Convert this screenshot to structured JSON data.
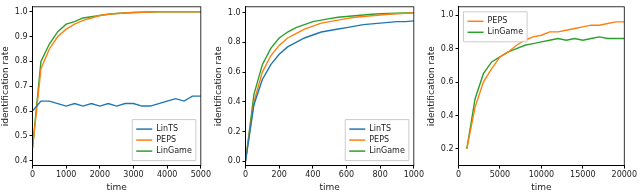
{
  "chart_data": [
    {
      "type": "line",
      "x_label": "time",
      "y_label": "identification rate",
      "xlim": [
        0,
        5000
      ],
      "xticks": [
        0,
        1000,
        2000,
        3000,
        4000,
        5000
      ],
      "ylim": [
        0.38,
        1.02
      ],
      "yticks": [
        0.4,
        0.5,
        0.6,
        0.7,
        0.8,
        0.9,
        {
          "value": 1,
          "label": "1.0"
        }
      ],
      "grid": false,
      "legend": "lower right",
      "x": [
        0,
        250,
        500,
        750,
        1000,
        1250,
        1500,
        1750,
        2000,
        2250,
        2500,
        2750,
        3000,
        3250,
        3500,
        3750,
        4000,
        4250,
        4500,
        4750,
        5000
      ],
      "series": [
        {
          "name": "LinTS",
          "color": "#1f77b4",
          "values": [
            0.6,
            0.64,
            0.64,
            0.63,
            0.62,
            0.63,
            0.62,
            0.63,
            0.62,
            0.63,
            0.62,
            0.63,
            0.63,
            0.62,
            0.62,
            0.63,
            0.64,
            0.65,
            0.64,
            0.66,
            0.66
          ]
        },
        {
          "name": "PEPS",
          "color": "#ff7f0e",
          "values": [
            0.45,
            0.77,
            0.85,
            0.9,
            0.93,
            0.95,
            0.965,
            0.975,
            0.985,
            0.99,
            0.993,
            0.995,
            0.997,
            0.998,
            0.999,
            1.0,
            1.0,
            1.0,
            1.0,
            1.0,
            1.0
          ]
        },
        {
          "name": "LinGame",
          "color": "#2ca02c",
          "values": [
            0.45,
            0.8,
            0.87,
            0.92,
            0.95,
            0.96,
            0.975,
            0.98,
            0.985,
            0.99,
            0.993,
            0.995,
            0.997,
            0.998,
            0.999,
            1.0,
            1.0,
            1.0,
            1.0,
            1.0,
            1.0
          ]
        }
      ]
    },
    {
      "type": "line",
      "x_label": "time",
      "y_label": "identification rate",
      "xlim": [
        0,
        1000
      ],
      "xticks": [
        0,
        200,
        400,
        600,
        800,
        1000
      ],
      "ylim": [
        -0.03,
        1.04
      ],
      "yticks": [
        {
          "value": 0,
          "label": "0.0"
        },
        0.2,
        0.4,
        0.6,
        0.8,
        {
          "value": 1,
          "label": "1.0"
        }
      ],
      "grid": false,
      "legend": "lower right",
      "x": [
        0,
        50,
        100,
        150,
        200,
        250,
        300,
        350,
        400,
        450,
        500,
        550,
        600,
        650,
        700,
        750,
        800,
        850,
        900,
        950,
        1000
      ],
      "series": [
        {
          "name": "LinTS",
          "color": "#1f77b4",
          "values": [
            0,
            0.38,
            0.55,
            0.65,
            0.72,
            0.77,
            0.8,
            0.83,
            0.85,
            0.87,
            0.88,
            0.89,
            0.9,
            0.91,
            0.92,
            0.925,
            0.93,
            0.935,
            0.94,
            0.94,
            0.945
          ]
        },
        {
          "name": "PEPS",
          "color": "#ff7f0e",
          "values": [
            0,
            0.4,
            0.6,
            0.71,
            0.78,
            0.83,
            0.86,
            0.89,
            0.91,
            0.93,
            0.94,
            0.95,
            0.96,
            0.97,
            0.975,
            0.98,
            0.985,
            0.99,
            0.993,
            0.996,
            1.0
          ]
        },
        {
          "name": "LinGame",
          "color": "#2ca02c",
          "values": [
            0,
            0.45,
            0.65,
            0.76,
            0.83,
            0.87,
            0.9,
            0.92,
            0.94,
            0.95,
            0.96,
            0.97,
            0.975,
            0.98,
            0.985,
            0.99,
            0.993,
            0.995,
            0.997,
            0.998,
            1.0
          ]
        }
      ]
    },
    {
      "type": "line",
      "x_label": "time",
      "y_label": "identification rate",
      "xlim": [
        0,
        20000
      ],
      "xticks": [
        0,
        5000,
        10000,
        15000,
        20000
      ],
      "ylim": [
        0.1,
        1.05
      ],
      "yticks": [
        0.2,
        0.4,
        0.6,
        0.8,
        {
          "value": 1,
          "label": "1.0"
        }
      ],
      "grid": false,
      "legend": "upper left",
      "x": [
        1000,
        2000,
        3000,
        4000,
        5000,
        6000,
        7000,
        8000,
        9000,
        10000,
        11000,
        12000,
        13000,
        14000,
        15000,
        16000,
        17000,
        18000,
        19000,
        20000
      ],
      "series": [
        {
          "name": "PEPS",
          "color": "#ff7f0e",
          "values": [
            0.2,
            0.45,
            0.6,
            0.68,
            0.75,
            0.78,
            0.82,
            0.85,
            0.87,
            0.88,
            0.9,
            0.9,
            0.91,
            0.92,
            0.93,
            0.94,
            0.94,
            0.95,
            0.96,
            0.96
          ]
        },
        {
          "name": "LinGame",
          "color": "#2ca02c",
          "values": [
            0.2,
            0.5,
            0.65,
            0.72,
            0.75,
            0.78,
            0.8,
            0.82,
            0.83,
            0.84,
            0.85,
            0.86,
            0.85,
            0.86,
            0.85,
            0.86,
            0.87,
            0.86,
            0.86,
            0.86
          ]
        }
      ]
    }
  ]
}
